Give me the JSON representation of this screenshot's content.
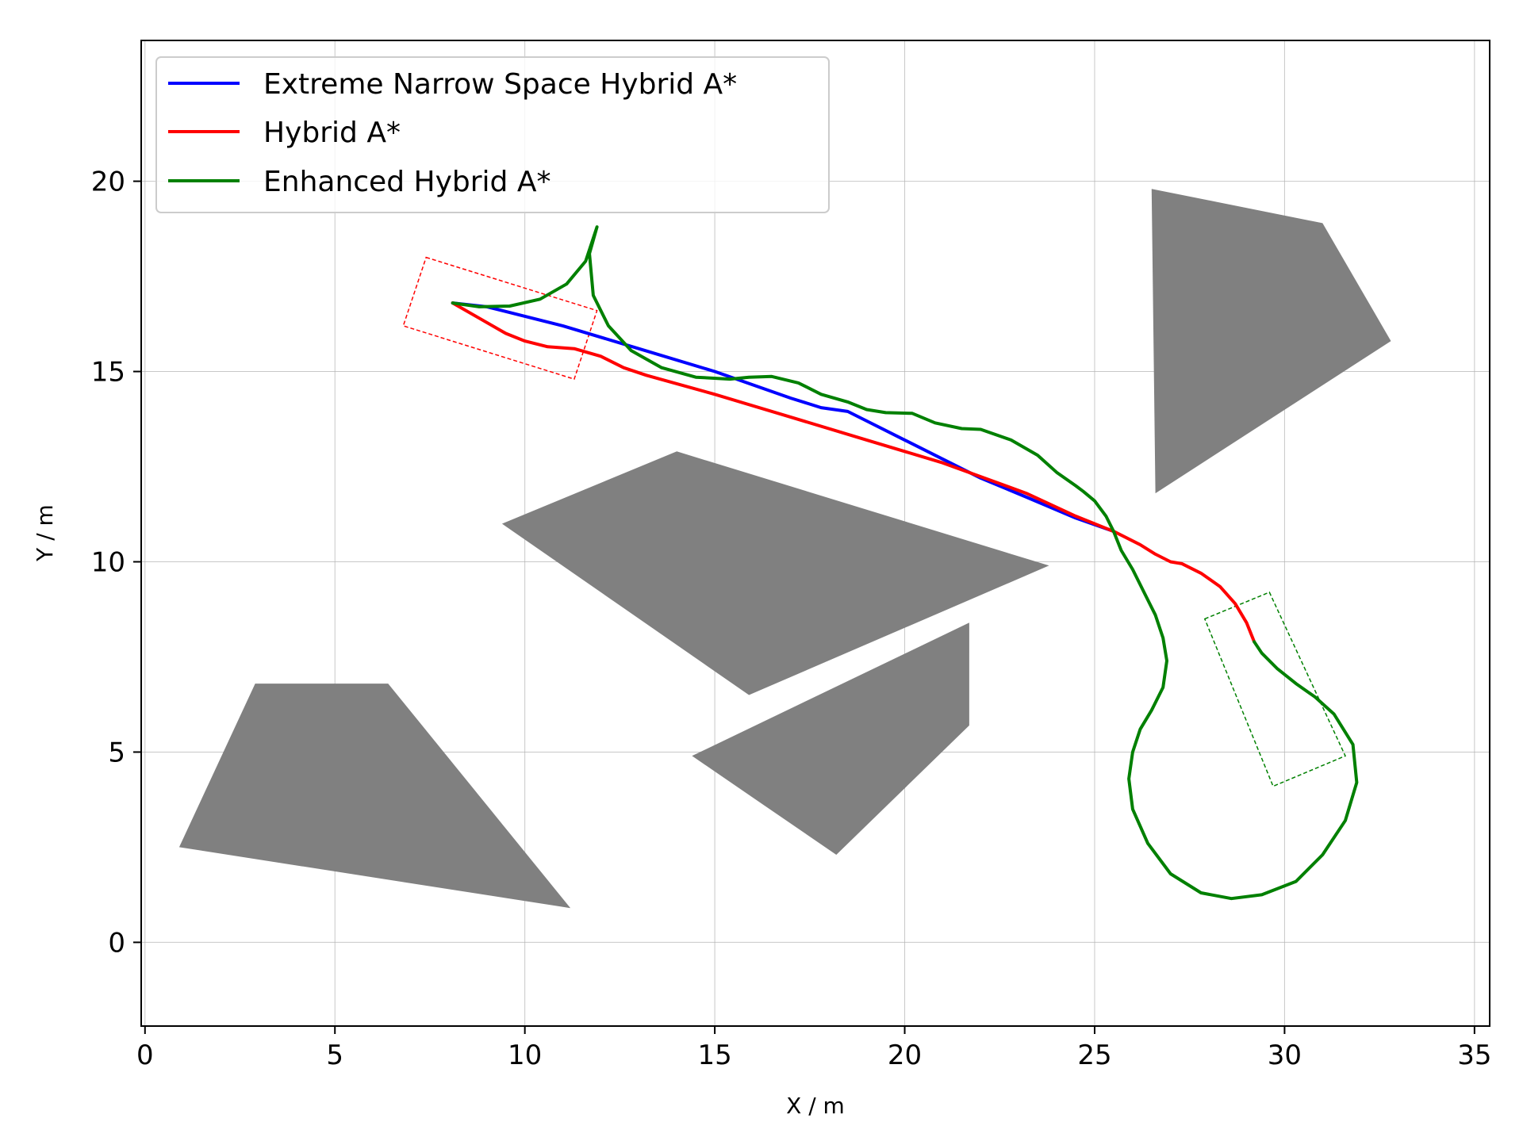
{
  "chart_data": {
    "type": "line",
    "title": "",
    "xlabel": "X / m",
    "ylabel": "Y / m",
    "xlim": [
      -0.1,
      35.4
    ],
    "ylim": [
      -2.2,
      23.7
    ],
    "x_ticks": [
      0,
      5,
      10,
      15,
      20,
      25,
      30,
      35
    ],
    "y_ticks": [
      0,
      5,
      10,
      15,
      20
    ],
    "grid": true,
    "legend_position": "top-left",
    "obstacles": [
      {
        "name": "obstacle-1",
        "color": "#808080",
        "points": [
          [
            2.9,
            6.8
          ],
          [
            6.4,
            6.8
          ],
          [
            11.2,
            0.9
          ],
          [
            0.9,
            2.5
          ]
        ]
      },
      {
        "name": "obstacle-2",
        "color": "#808080",
        "points": [
          [
            9.4,
            11.0
          ],
          [
            14.0,
            12.9
          ],
          [
            23.8,
            9.9
          ],
          [
            15.9,
            6.5
          ]
        ]
      },
      {
        "name": "obstacle-3",
        "color": "#808080",
        "points": [
          [
            14.4,
            4.9
          ],
          [
            21.7,
            8.4
          ],
          [
            21.7,
            5.7
          ],
          [
            18.2,
            2.3
          ]
        ]
      },
      {
        "name": "obstacle-4",
        "color": "#808080",
        "points": [
          [
            26.5,
            19.8
          ],
          [
            31.0,
            18.9
          ],
          [
            32.8,
            15.8
          ],
          [
            26.6,
            11.8
          ]
        ]
      }
    ],
    "boxes": [
      {
        "name": "start-vehicle-box",
        "color": "#ff0000",
        "points": [
          [
            7.4,
            18.0
          ],
          [
            11.9,
            16.6
          ],
          [
            11.3,
            14.8
          ],
          [
            6.8,
            16.2
          ]
        ]
      },
      {
        "name": "goal-vehicle-box",
        "color": "#008000",
        "points": [
          [
            27.9,
            8.5
          ],
          [
            29.6,
            9.2
          ],
          [
            31.6,
            4.9
          ],
          [
            29.7,
            4.1
          ]
        ]
      }
    ],
    "series": [
      {
        "name": "Extreme Narrow Space Hybrid A*",
        "color": "#0000ff",
        "points": [
          [
            8.1,
            16.8
          ],
          [
            9.0,
            16.7
          ],
          [
            11.0,
            16.2
          ],
          [
            13.0,
            15.6
          ],
          [
            15.0,
            15.0
          ],
          [
            17.0,
            14.3
          ],
          [
            17.8,
            14.05
          ],
          [
            18.5,
            13.95
          ],
          [
            19.0,
            13.7
          ],
          [
            20.0,
            13.2
          ],
          [
            21.0,
            12.7
          ],
          [
            22.0,
            12.2
          ],
          [
            23.2,
            11.7
          ],
          [
            24.5,
            11.15
          ],
          [
            25.5,
            10.8
          ]
        ]
      },
      {
        "name": "Hybrid A*",
        "color": "#ff0000",
        "points": [
          [
            8.1,
            16.8
          ],
          [
            8.8,
            16.4
          ],
          [
            9.5,
            16.0
          ],
          [
            10.0,
            15.8
          ],
          [
            10.6,
            15.65
          ],
          [
            11.3,
            15.6
          ],
          [
            12.0,
            15.4
          ],
          [
            12.6,
            15.1
          ],
          [
            13.2,
            14.9
          ],
          [
            15.0,
            14.4
          ],
          [
            17.0,
            13.8
          ],
          [
            19.0,
            13.2
          ],
          [
            21.0,
            12.6
          ],
          [
            23.2,
            11.8
          ],
          [
            24.5,
            11.2
          ],
          [
            25.5,
            10.8
          ],
          [
            26.2,
            10.45
          ],
          [
            26.6,
            10.2
          ],
          [
            27.0,
            10.0
          ],
          [
            27.3,
            9.95
          ],
          [
            27.8,
            9.7
          ],
          [
            28.3,
            9.35
          ],
          [
            28.7,
            8.9
          ],
          [
            29.0,
            8.4
          ],
          [
            29.2,
            7.9
          ]
        ]
      },
      {
        "name": "Enhanced Hybrid A*",
        "color": "#008000",
        "points": [
          [
            8.1,
            16.8
          ],
          [
            8.8,
            16.7
          ],
          [
            9.6,
            16.72
          ],
          [
            10.4,
            16.9
          ],
          [
            11.1,
            17.3
          ],
          [
            11.6,
            17.9
          ],
          [
            11.9,
            18.8
          ],
          [
            11.7,
            18.1
          ],
          [
            11.8,
            17.0
          ],
          [
            12.2,
            16.2
          ],
          [
            12.8,
            15.55
          ],
          [
            13.6,
            15.1
          ],
          [
            14.5,
            14.85
          ],
          [
            15.4,
            14.8
          ],
          [
            15.9,
            14.85
          ],
          [
            16.5,
            14.87
          ],
          [
            17.2,
            14.7
          ],
          [
            17.8,
            14.4
          ],
          [
            18.5,
            14.2
          ],
          [
            19.0,
            14.0
          ],
          [
            19.5,
            13.92
          ],
          [
            20.2,
            13.9
          ],
          [
            20.8,
            13.65
          ],
          [
            21.5,
            13.5
          ],
          [
            22.0,
            13.48
          ],
          [
            22.8,
            13.2
          ],
          [
            23.5,
            12.8
          ],
          [
            24.0,
            12.35
          ],
          [
            24.5,
            12.0
          ],
          [
            24.7,
            11.85
          ],
          [
            25.0,
            11.6
          ],
          [
            25.3,
            11.2
          ],
          [
            25.5,
            10.8
          ],
          [
            25.7,
            10.3
          ],
          [
            26.0,
            9.8
          ],
          [
            26.3,
            9.2
          ],
          [
            26.6,
            8.6
          ],
          [
            26.8,
            8.0
          ],
          [
            26.9,
            7.4
          ],
          [
            26.8,
            6.7
          ],
          [
            26.5,
            6.1
          ],
          [
            26.2,
            5.6
          ],
          [
            26.0,
            5.0
          ],
          [
            25.9,
            4.3
          ],
          [
            26.0,
            3.5
          ],
          [
            26.4,
            2.6
          ],
          [
            27.0,
            1.8
          ],
          [
            27.8,
            1.3
          ],
          [
            28.6,
            1.15
          ],
          [
            29.4,
            1.25
          ],
          [
            30.3,
            1.6
          ],
          [
            31.0,
            2.3
          ],
          [
            31.6,
            3.2
          ],
          [
            31.9,
            4.2
          ],
          [
            31.8,
            5.2
          ],
          [
            31.3,
            6.0
          ],
          [
            30.8,
            6.45
          ],
          [
            30.3,
            6.8
          ],
          [
            29.8,
            7.2
          ],
          [
            29.4,
            7.6
          ],
          [
            29.2,
            7.9
          ]
        ]
      }
    ]
  }
}
